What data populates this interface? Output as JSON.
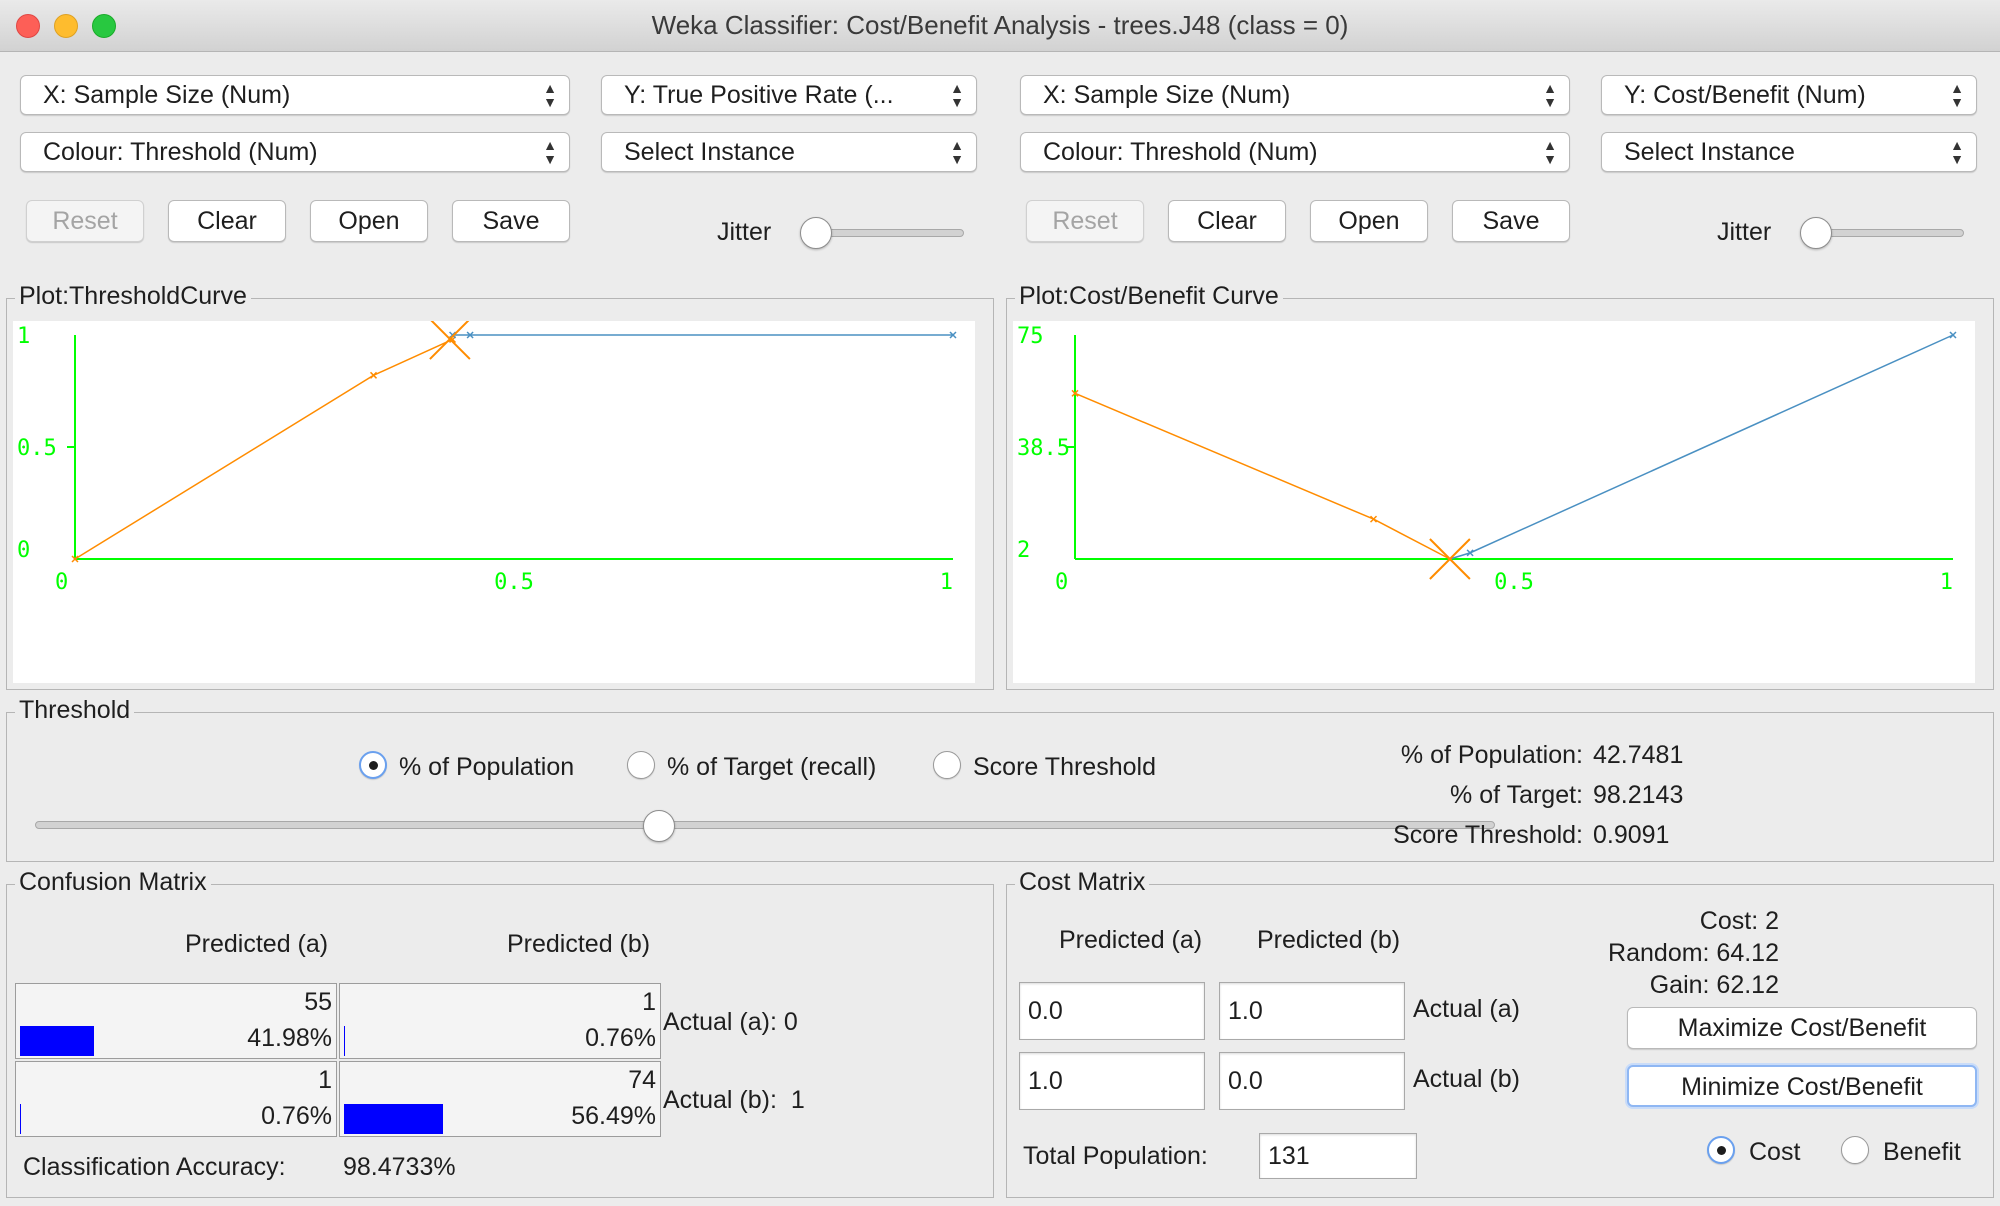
{
  "window": {
    "title": "Weka Classifier: Cost/Benefit Analysis - trees.J48 (class = 0)"
  },
  "left_panel": {
    "x_axis_select": "X: Sample Size (Num)",
    "y_axis_select": "Y: True Positive Rate (...",
    "colour_select": "Colour: Threshold (Num)",
    "instance_select": "Select Instance",
    "buttons": {
      "reset": "Reset",
      "clear": "Clear",
      "open": "Open",
      "save": "Save"
    },
    "jitter_label": "Jitter",
    "jitter_value": 0,
    "plot_title": "Plot:ThresholdCurve"
  },
  "right_panel": {
    "x_axis_select": "X: Sample Size (Num)",
    "y_axis_select": "Y: Cost/Benefit (Num)",
    "colour_select": "Colour: Threshold (Num)",
    "instance_select": "Select Instance",
    "buttons": {
      "reset": "Reset",
      "clear": "Clear",
      "open": "Open",
      "save": "Save"
    },
    "jitter_label": "Jitter",
    "jitter_value": 0,
    "plot_title": "Plot:Cost/Benefit Curve"
  },
  "chart_data": [
    {
      "type": "line",
      "title": "",
      "xlim": [
        0,
        1
      ],
      "ylim": [
        0,
        1
      ],
      "x_ticks": [
        "0",
        "0.5",
        "1"
      ],
      "y_ticks": [
        "0",
        "0.5",
        "1"
      ],
      "series": [
        {
          "color": "#ff8c00",
          "x": [
            0,
            0.34,
            0.43
          ],
          "y": [
            0,
            0.82,
            0.98
          ]
        },
        {
          "color": "#4a90c2",
          "x": [
            0.43,
            0.45,
            1.0
          ],
          "y": [
            1.0,
            1.0,
            1.0
          ]
        }
      ],
      "selected_point": {
        "x": 0.427,
        "y": 0.982,
        "color": "#ff8c00"
      }
    },
    {
      "type": "line",
      "title": "",
      "xlim": [
        0,
        1
      ],
      "ylim": [
        2,
        75
      ],
      "x_ticks": [
        "0",
        "0.5",
        "1"
      ],
      "y_ticks": [
        "2",
        "38.5",
        "75"
      ],
      "series": [
        {
          "color": "#ff8c00",
          "x": [
            0,
            0.34,
            0.427
          ],
          "y": [
            56,
            15,
            2
          ]
        },
        {
          "color": "#4a90c2",
          "x": [
            0.427,
            0.45,
            1.0
          ],
          "y": [
            2,
            4,
            75
          ]
        }
      ],
      "selected_point": {
        "x": 0.427,
        "y": 2,
        "color": "#ff8c00"
      }
    }
  ],
  "threshold": {
    "group_title": "Threshold",
    "options": [
      "% of Population",
      "% of Target (recall)",
      "Score Threshold"
    ],
    "selected_option": "% of Population",
    "slider_value_percent": 42.7481,
    "stats": [
      {
        "label": "% of Population:",
        "value": "42.7481"
      },
      {
        "label": "% of Target:",
        "value": "98.2143"
      },
      {
        "label": "Score Threshold:",
        "value": "0.9091"
      }
    ]
  },
  "confusion_matrix": {
    "group_title": "Confusion Matrix",
    "col_headers": [
      "Predicted (a)",
      "Predicted (b)"
    ],
    "cells": [
      [
        {
          "count": "55",
          "percent": "41.98%",
          "fraction": 0.4198
        },
        {
          "count": "1",
          "percent": "0.76%",
          "fraction": 0.0076
        }
      ],
      [
        {
          "count": "1",
          "percent": "0.76%",
          "fraction": 0.0076
        },
        {
          "count": "74",
          "percent": "56.49%",
          "fraction": 0.5649
        }
      ]
    ],
    "row_labels": [
      "Actual (a): 0",
      "Actual (b):  1"
    ],
    "accuracy_label": "Classification Accuracy:",
    "accuracy_value": "98.4733%"
  },
  "cost_matrix": {
    "group_title": "Cost Matrix",
    "col_headers": [
      "Predicted (a)",
      "Predicted (b)"
    ],
    "values": [
      [
        "0.0",
        "1.0"
      ],
      [
        "1.0",
        "0.0"
      ]
    ],
    "row_labels": [
      "Actual (a)",
      "Actual (b)"
    ],
    "total_population_label": "Total Population:",
    "total_population_value": "131",
    "cost_text": "Cost: 2",
    "random_text": "Random: 64.12",
    "gain_text": "Gain: 62.12",
    "maximize_button": "Maximize Cost/Benefit",
    "minimize_button": "Minimize Cost/Benefit",
    "mode_options": [
      "Cost",
      "Benefit"
    ],
    "selected_mode": "Cost"
  }
}
